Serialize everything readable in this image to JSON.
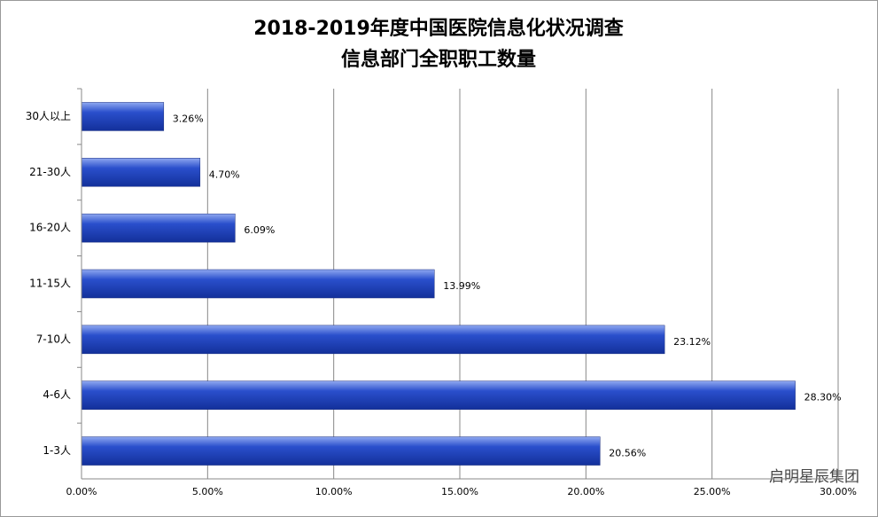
{
  "chart_data": {
    "type": "bar",
    "orientation": "horizontal",
    "title": "2018-2019年度中国医院信息化状况调查",
    "subtitle": "信息部门全职职工数量",
    "categories": [
      "30人以上",
      "21-30人",
      "16-20人",
      "11-15人",
      "7-10人",
      "4-6人",
      "1-3人"
    ],
    "values": [
      3.26,
      4.7,
      6.09,
      13.99,
      23.12,
      28.3,
      20.56
    ],
    "value_labels": [
      "3.26%",
      "4.70%",
      "6.09%",
      "13.99%",
      "23.12%",
      "28.30%",
      "20.56%"
    ],
    "color": "#2a4fcc",
    "xlim": [
      0,
      30
    ],
    "xticks": [
      {
        "value": 0,
        "label": "0.00%"
      },
      {
        "value": 5,
        "label": "5.00%"
      },
      {
        "value": 10,
        "label": "10.00%"
      },
      {
        "value": 15,
        "label": "15.00%"
      },
      {
        "value": 20,
        "label": "20.00%"
      },
      {
        "value": 25,
        "label": "25.00%"
      },
      {
        "value": 30,
        "label": "30.00%"
      }
    ],
    "grid": true,
    "watermark": "启明星辰集团"
  }
}
